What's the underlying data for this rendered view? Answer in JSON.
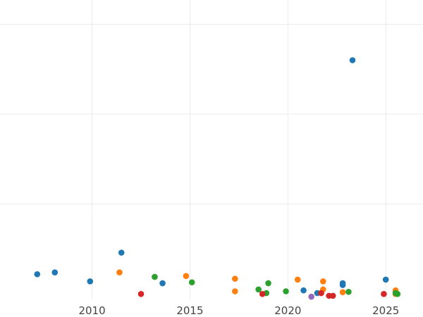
{
  "chart_data": {
    "type": "scatter",
    "title": "",
    "xlabel": "",
    "ylabel": "",
    "grid": true,
    "xlim": [
      2005.3,
      2026.9
    ],
    "ylim": [
      -0.3,
      16.35
    ],
    "x_ticks": [
      "2010",
      "2015",
      "2020",
      "2025"
    ],
    "y_ticks": [
      5,
      10,
      15
    ],
    "colors": {
      "blue": "#1f77b4",
      "orange": "#ff7f0e",
      "green": "#2ca02c",
      "red": "#d62728",
      "purple": "#9467bd",
      "grid": "#ebebeb",
      "tick_text": "#444444"
    },
    "series": [
      {
        "color": "#1f77b4",
        "points": [
          {
            "x": 2007.2,
            "y": 1.1
          },
          {
            "x": 2008.1,
            "y": 1.2
          },
          {
            "x": 2009.9,
            "y": 0.7
          },
          {
            "x": 2011.5,
            "y": 2.3
          },
          {
            "x": 2013.6,
            "y": 0.6
          },
          {
            "x": 2020.8,
            "y": 0.2
          },
          {
            "x": 2021.5,
            "y": 0.05
          },
          {
            "x": 2022.8,
            "y": 0.6
          },
          {
            "x": 2022.8,
            "y": 0.5
          },
          {
            "x": 2023.3,
            "y": 13.0
          },
          {
            "x": 2025.0,
            "y": 0.8
          }
        ]
      },
      {
        "color": "#ff7f0e",
        "points": [
          {
            "x": 2011.4,
            "y": 1.2
          },
          {
            "x": 2014.8,
            "y": 1.0
          },
          {
            "x": 2017.3,
            "y": 0.85
          },
          {
            "x": 2017.3,
            "y": 0.15
          },
          {
            "x": 2020.5,
            "y": 0.8
          },
          {
            "x": 2021.8,
            "y": 0.7
          },
          {
            "x": 2021.8,
            "y": 0.25
          },
          {
            "x": 2022.8,
            "y": 0.1
          },
          {
            "x": 2025.5,
            "y": 0.2
          },
          {
            "x": 2025.5,
            "y": 0.0
          }
        ]
      },
      {
        "color": "#2ca02c",
        "points": [
          {
            "x": 2013.2,
            "y": 0.95
          },
          {
            "x": 2015.1,
            "y": 0.65
          },
          {
            "x": 2018.5,
            "y": 0.25
          },
          {
            "x": 2018.9,
            "y": 0.05
          },
          {
            "x": 2019.0,
            "y": 0.6
          },
          {
            "x": 2019.9,
            "y": 0.15
          },
          {
            "x": 2023.1,
            "y": 0.12
          },
          {
            "x": 2025.5,
            "y": 0.05
          },
          {
            "x": 2025.6,
            "y": 0.0
          }
        ]
      },
      {
        "color": "#d62728",
        "points": [
          {
            "x": 2012.5,
            "y": 0.0
          },
          {
            "x": 2018.7,
            "y": 0.0
          },
          {
            "x": 2021.7,
            "y": 0.05
          },
          {
            "x": 2022.1,
            "y": -0.1
          },
          {
            "x": 2022.3,
            "y": -0.1
          },
          {
            "x": 2024.9,
            "y": 0.0
          }
        ]
      },
      {
        "color": "#9467bd",
        "points": [
          {
            "x": 2021.2,
            "y": -0.15
          }
        ]
      }
    ]
  }
}
